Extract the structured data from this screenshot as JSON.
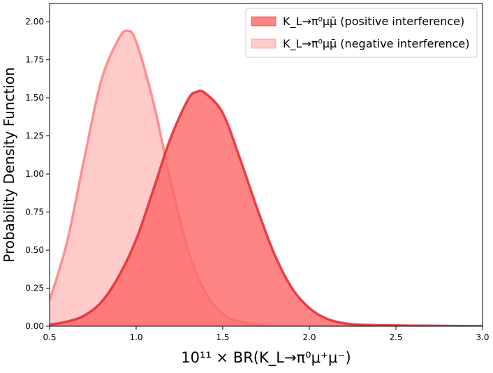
{
  "chart_data": {
    "type": "area",
    "xlabel": "10¹¹ × BR(K_L→π⁰μ⁺μ⁻)",
    "ylabel": "Probability Density Function",
    "xlim": [
      0.5,
      3.0
    ],
    "ylim": [
      0.0,
      2.12
    ],
    "x_ticks": [
      "0.5",
      "1.0",
      "1.5",
      "2.0",
      "2.5",
      "3.0"
    ],
    "y_ticks": [
      "0.00",
      "0.25",
      "0.50",
      "0.75",
      "1.00",
      "1.25",
      "1.50",
      "1.75",
      "2.00"
    ],
    "grid": false,
    "legend_position": "top-right",
    "series": [
      {
        "name": "K_L→π⁰μμ̄ (positive interference)",
        "fill": "#ff6666",
        "edge": "#e8282e",
        "fill_opacity": 0.8,
        "x": [
          0.5,
          0.6,
          0.7,
          0.8,
          0.9,
          1.0,
          1.1,
          1.2,
          1.3,
          1.35,
          1.4,
          1.5,
          1.6,
          1.7,
          1.8,
          1.9,
          2.0,
          2.1,
          2.2,
          2.3,
          2.5,
          3.0
        ],
        "y": [
          0.01,
          0.03,
          0.07,
          0.16,
          0.33,
          0.57,
          0.9,
          1.24,
          1.49,
          1.54,
          1.53,
          1.4,
          1.1,
          0.77,
          0.47,
          0.25,
          0.12,
          0.05,
          0.02,
          0.01,
          0.005,
          0.0
        ]
      },
      {
        "name": "K_L→π⁰μμ̄ (negative interference)",
        "fill": "#ffb3b3",
        "edge": "#ff8080",
        "fill_opacity": 0.7,
        "x": [
          0.5,
          0.6,
          0.7,
          0.8,
          0.9,
          0.95,
          1.0,
          1.1,
          1.2,
          1.3,
          1.4,
          1.5,
          1.6,
          1.7,
          1.8,
          2.0,
          3.0
        ],
        "y": [
          0.17,
          0.55,
          1.1,
          1.62,
          1.89,
          1.94,
          1.87,
          1.47,
          0.95,
          0.5,
          0.22,
          0.08,
          0.03,
          0.01,
          0.0,
          0.0,
          0.0
        ]
      }
    ]
  }
}
